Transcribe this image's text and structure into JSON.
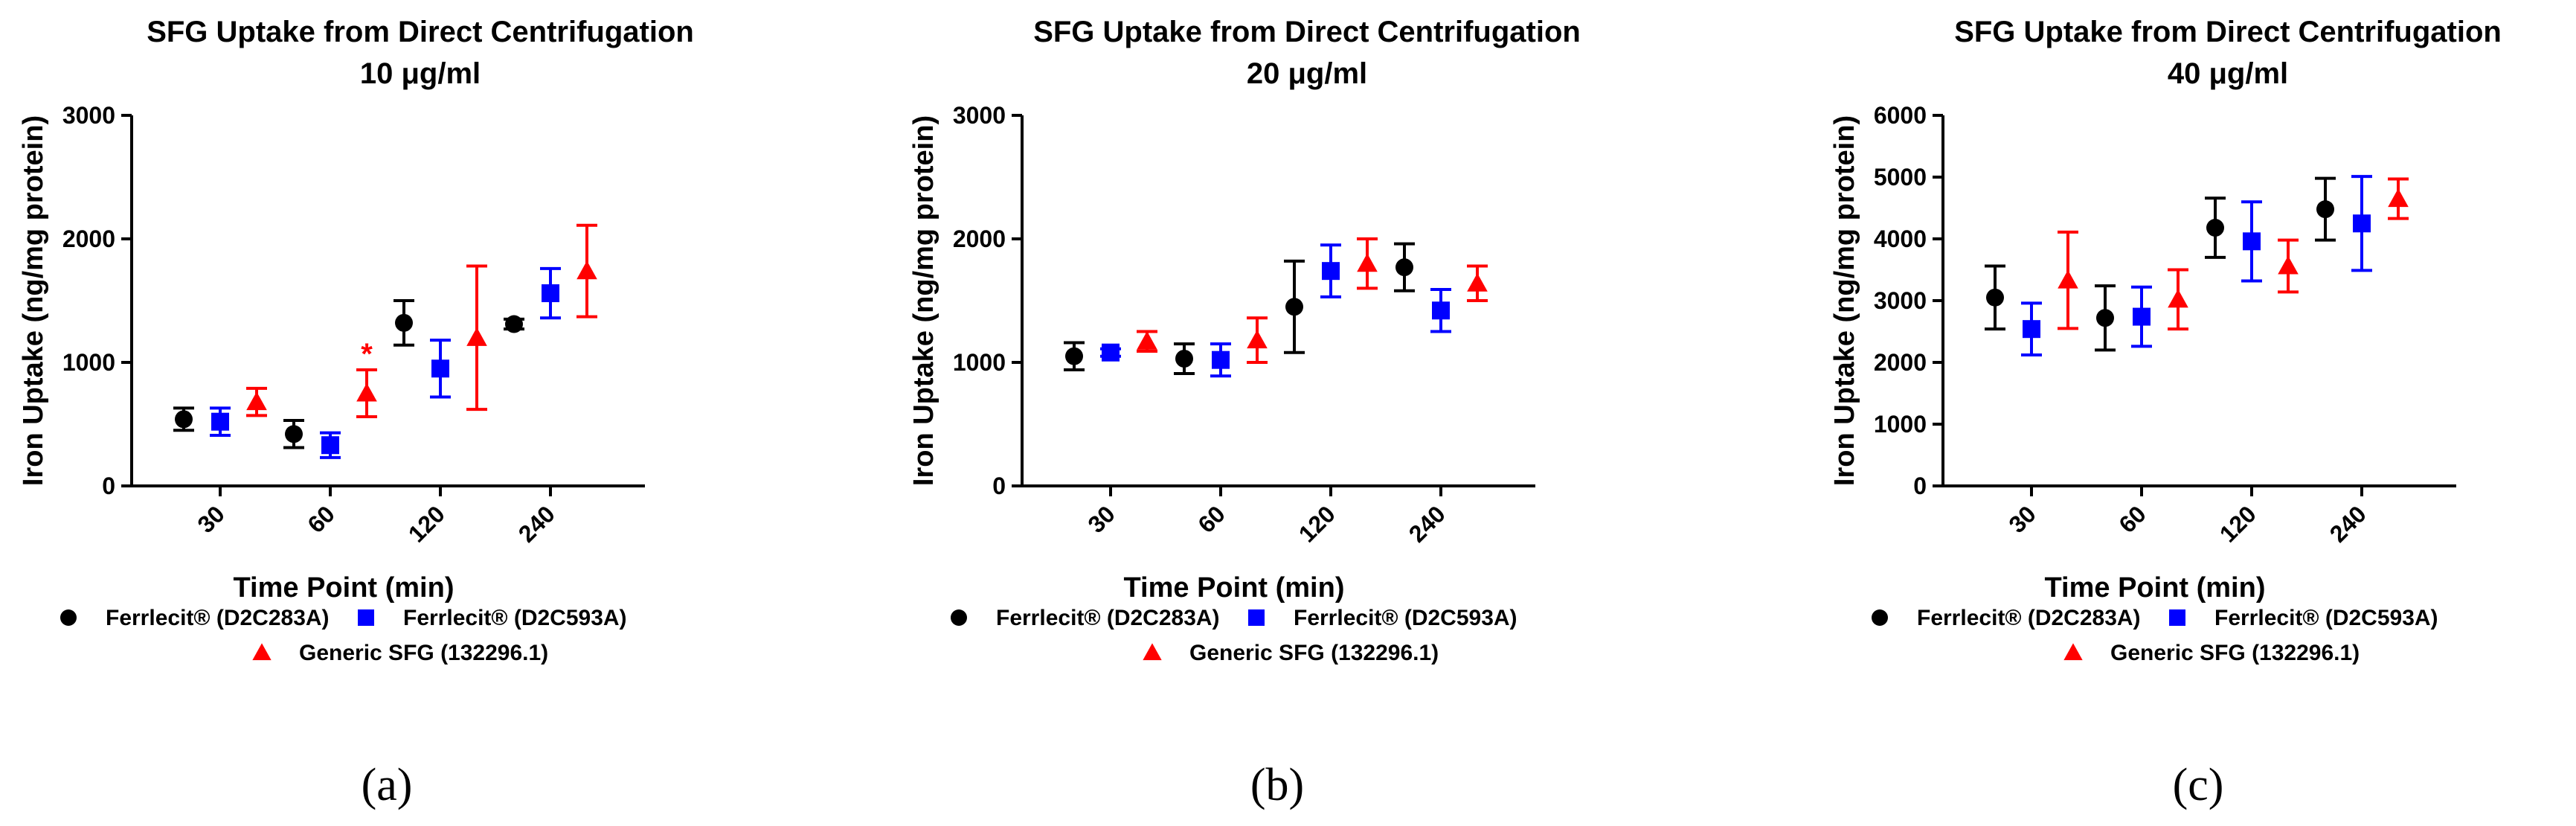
{
  "chart_data": [
    {
      "type": "scatter",
      "panel_label": "(a)",
      "title": "SFG Uptake from Direct Centrifugation",
      "subtitle": "10 μg/ml",
      "xlabel": "Time Point (min)",
      "ylabel": "Iron Uptake (ng/mg protein)",
      "categories": [
        "30",
        "60",
        "120",
        "240"
      ],
      "ylim": [
        0,
        3000
      ],
      "yticks": [
        "0",
        "1000",
        "2000",
        "3000"
      ],
      "series": [
        {
          "name": "Ferrlecit® (D2C283A)",
          "color": "#000000",
          "marker": "circle",
          "values": [
            540,
            420,
            1320,
            1310
          ],
          "errors": [
            90,
            110,
            180,
            40
          ]
        },
        {
          "name": "Ferrlecit® (D2C593A)",
          "color": "#0000ff",
          "marker": "square",
          "values": [
            520,
            330,
            950,
            1560
          ],
          "errors": [
            110,
            100,
            230,
            200
          ]
        },
        {
          "name": "Generic SFG (132296.1)",
          "color": "#ff0000",
          "marker": "triangle",
          "values": [
            680,
            750,
            1200,
            1740
          ],
          "errors": [
            110,
            190,
            580,
            370
          ]
        }
      ],
      "annotations": [
        {
          "text": "*",
          "series": 2,
          "category": "60",
          "color": "#ff0000"
        }
      ]
    },
    {
      "type": "scatter",
      "panel_label": "(b)",
      "title": "SFG Uptake from Direct Centrifugation",
      "subtitle": "20 μg/ml",
      "xlabel": "Time Point (min)",
      "ylabel": "Iron Uptake (ng/mg protein)",
      "categories": [
        "30",
        "60",
        "120",
        "240"
      ],
      "ylim": [
        0,
        3000
      ],
      "yticks": [
        "0",
        "1000",
        "2000",
        "3000"
      ],
      "series": [
        {
          "name": "Ferrlecit® (D2C283A)",
          "color": "#000000",
          "marker": "circle",
          "values": [
            1050,
            1030,
            1450,
            1770
          ],
          "errors": [
            110,
            120,
            370,
            190
          ]
        },
        {
          "name": "Ferrlecit® (D2C593A)",
          "color": "#0000ff",
          "marker": "square",
          "values": [
            1080,
            1020,
            1740,
            1420
          ],
          "errors": [
            30,
            130,
            210,
            170
          ]
        },
        {
          "name": "Generic SFG (132296.1)",
          "color": "#ff0000",
          "marker": "triangle",
          "values": [
            1170,
            1180,
            1800,
            1640
          ],
          "errors": [
            80,
            180,
            200,
            140
          ]
        }
      ],
      "annotations": []
    },
    {
      "type": "scatter",
      "panel_label": "(c)",
      "title": "SFG Uptake from Direct Centrifugation",
      "subtitle": "40 μg/ml",
      "xlabel": "Time Point (min)",
      "ylabel": "Iron Uptake (ng/mg protein)",
      "categories": [
        "30",
        "60",
        "120",
        "240"
      ],
      "ylim": [
        0,
        6000
      ],
      "yticks": [
        "0",
        "1000",
        "2000",
        "3000",
        "4000",
        "5000",
        "6000"
      ],
      "series": [
        {
          "name": "Ferrlecit® (D2C283A)",
          "color": "#000000",
          "marker": "circle",
          "values": [
            3050,
            2720,
            4180,
            4480
          ],
          "errors": [
            510,
            520,
            480,
            500
          ]
        },
        {
          "name": "Ferrlecit® (D2C593A)",
          "color": "#0000ff",
          "marker": "square",
          "values": [
            2540,
            2740,
            3960,
            4250
          ],
          "errors": [
            420,
            480,
            640,
            760
          ]
        },
        {
          "name": "Generic SFG (132296.1)",
          "color": "#ff0000",
          "marker": "triangle",
          "values": [
            3330,
            3020,
            3560,
            4650
          ],
          "errors": [
            780,
            480,
            420,
            320
          ]
        }
      ],
      "annotations": []
    }
  ]
}
